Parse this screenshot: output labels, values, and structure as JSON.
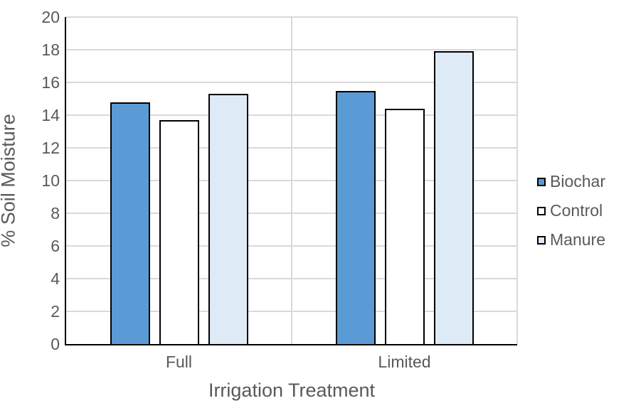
{
  "chart_data": {
    "type": "bar",
    "title": "",
    "categories": [
      "Full",
      "Limited"
    ],
    "series": [
      {
        "name": "Biochar",
        "values": [
          14.8,
          15.5
        ],
        "fill": "#5B9BD5"
      },
      {
        "name": "Control",
        "values": [
          13.7,
          14.4
        ],
        "fill": "#FFFFFF"
      },
      {
        "name": "Manure",
        "values": [
          15.3,
          17.9
        ],
        "fill": "#DEEAF6"
      }
    ],
    "xlabel": "Irrigation Treatment",
    "ylabel": "% Soil Moisture",
    "ylim": [
      0,
      20
    ],
    "yticks": [
      0,
      2,
      4,
      6,
      8,
      10,
      12,
      14,
      16,
      18,
      20
    ],
    "grid": true,
    "legend_position": "right",
    "colors": {
      "bar_border": "#000000",
      "gridline": "#D9D9D9",
      "axis_line": "#000000",
      "text": "#595959"
    }
  }
}
